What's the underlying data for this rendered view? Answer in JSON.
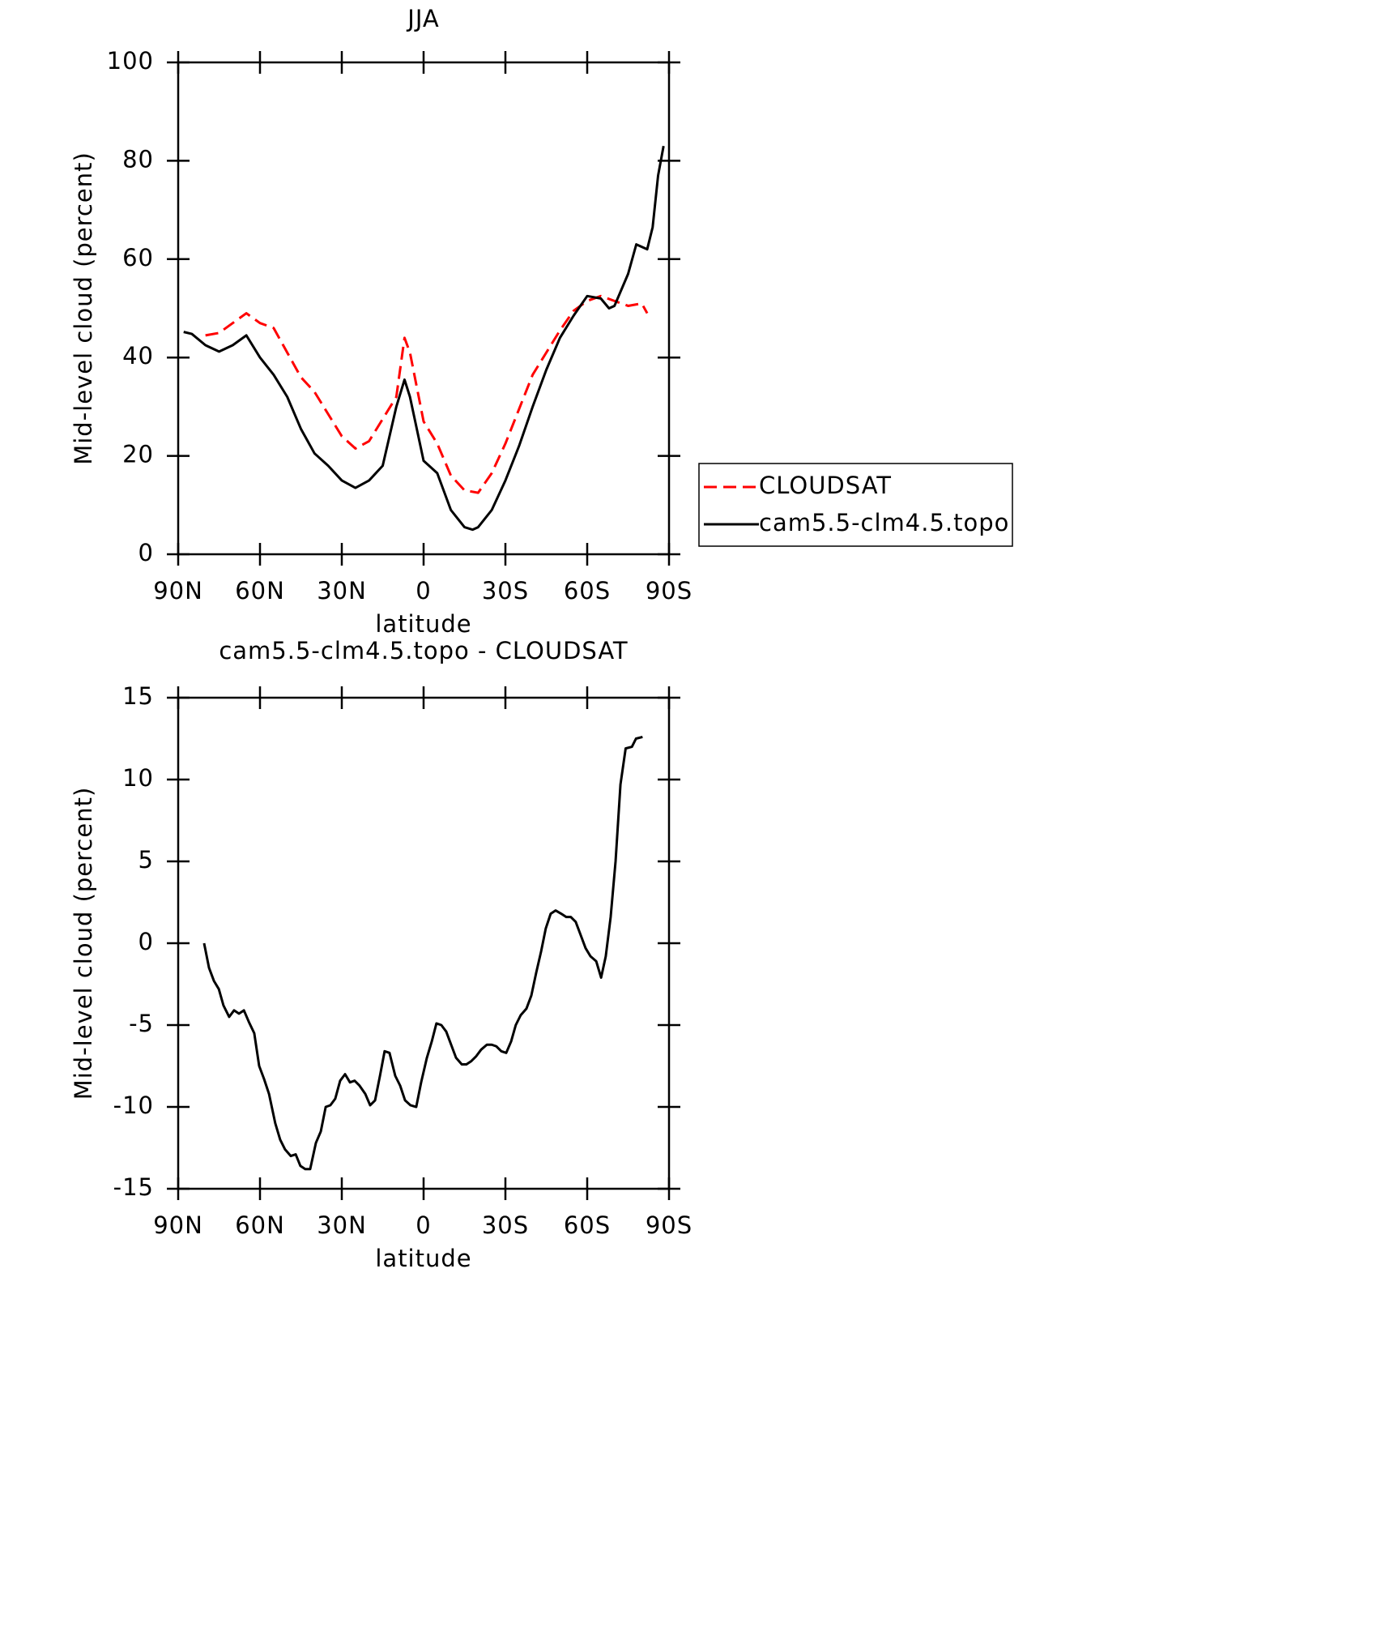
{
  "chart_data": [
    {
      "type": "line",
      "title": "JJA",
      "xlabel": "latitude",
      "ylabel": "Mid-level cloud (percent)",
      "xlim": [
        90,
        -90
      ],
      "xticks": [
        {
          "value": 90,
          "label": "90N"
        },
        {
          "value": 60,
          "label": "60N"
        },
        {
          "value": 30,
          "label": "30N"
        },
        0,
        {
          "value": -30,
          "label": "30S"
        },
        {
          "value": -60,
          "label": "60S"
        },
        {
          "value": -90,
          "label": "90S"
        }
      ],
      "ylim": [
        0,
        100
      ],
      "yticks": [
        0,
        20,
        40,
        60,
        80,
        100
      ],
      "legend": "outside-right",
      "series": [
        {
          "name": "CLOUDSAT",
          "color": "#ff0000",
          "dashed": true,
          "x": [
            80,
            75,
            70,
            65,
            60,
            55,
            50,
            45,
            40,
            35,
            30,
            25,
            20,
            15,
            10,
            7,
            5,
            0,
            -5,
            -10,
            -15,
            -20,
            -25,
            -30,
            -35,
            -40,
            -45,
            -50,
            -55,
            -60,
            -65,
            -70,
            -75,
            -80,
            -82
          ],
          "values": [
            44.5,
            45,
            47,
            49,
            47,
            46,
            41,
            36,
            33,
            28.5,
            24,
            21.5,
            23,
            27.5,
            32,
            44,
            41,
            27,
            22.5,
            16,
            13,
            12.5,
            16.5,
            22.5,
            29.5,
            36.5,
            41,
            45.5,
            49.5,
            51.5,
            52.5,
            51.5,
            50.5,
            51,
            49
          ]
        },
        {
          "name": "cam5.5-clm4.5.topo",
          "color": "#000000",
          "dashed": false,
          "x": [
            88,
            85,
            80,
            75,
            70,
            65,
            60,
            55,
            50,
            45,
            40,
            35,
            30,
            25,
            20,
            15,
            10,
            7,
            5,
            0,
            -5,
            -10,
            -15,
            -18,
            -20,
            -25,
            -30,
            -35,
            -40,
            -45,
            -50,
            -55,
            -60,
            -65,
            -68,
            -70,
            -75,
            -78,
            -80,
            -82,
            -84,
            -86,
            -88
          ],
          "values": [
            45.2,
            44.8,
            42.5,
            41.2,
            42.5,
            44.5,
            40,
            36.5,
            32,
            25.5,
            20.5,
            18,
            15,
            13.5,
            15,
            18,
            30,
            35.5,
            32,
            19,
            16.5,
            9,
            5.5,
            5,
            5.5,
            9,
            15,
            22,
            30,
            37.5,
            44,
            48.5,
            52.5,
            52,
            50,
            50.5,
            57,
            63,
            62.5,
            62,
            66.5,
            77,
            83
          ]
        }
      ]
    },
    {
      "type": "line",
      "title": "cam5.5-clm4.5.topo - CLOUDSAT",
      "xlabel": "latitude",
      "ylabel": "Mid-level cloud (percent)",
      "xlim": [
        90,
        -90
      ],
      "xticks": [
        {
          "value": 90,
          "label": "90N"
        },
        {
          "value": 60,
          "label": "60N"
        },
        {
          "value": 30,
          "label": "30N"
        },
        0,
        {
          "value": -30,
          "label": "30S"
        },
        {
          "value": -60,
          "label": "60S"
        },
        {
          "value": -90,
          "label": "90S"
        }
      ],
      "ylim": [
        -15,
        15
      ],
      "yticks": [
        -15,
        -10,
        -5,
        0,
        5,
        10,
        15
      ],
      "series": [
        {
          "color": "#000000",
          "dashed": false,
          "x": [
            80.5,
            78.7,
            76.9,
            75.1,
            73.4,
            71.3,
            69.5,
            67.7,
            65.9,
            64.1,
            62.1,
            60.3,
            58.5,
            56.7,
            54.4,
            52.6,
            50.8,
            48.7,
            46.9,
            45.2,
            43.4,
            41.6,
            39.5,
            37.7,
            35.9,
            34.2,
            32.4,
            30.6,
            28.8,
            27,
            25.3,
            23.5,
            21.4,
            19.6,
            17.8,
            16,
            14.3,
            12.5,
            10.4,
            8.6,
            6.8,
            4.8,
            2.7,
            0.9,
            -1.2,
            -3,
            -4.7,
            -6.5,
            -8.3,
            -10.1,
            -11.9,
            -14,
            -15.7,
            -17.5,
            -19.3,
            -21.1,
            -23.2,
            -25,
            -26.7,
            -28.5,
            -30.3,
            -32.1,
            -33.8,
            -35.6,
            -37.7,
            -39.5,
            -41.3,
            -43.1,
            -44.8,
            -46.6,
            -48.4,
            -50.5,
            -52.3,
            -54,
            -55.8,
            -57.6,
            -59.4,
            -61.2,
            -63.3,
            -65.1,
            -66.8,
            -68.6,
            -70.4,
            -72.2,
            -74.1,
            -76.4,
            -77.9,
            -80.3
          ],
          "values": [
            0,
            -1.5,
            -2.3,
            -2.8,
            -3.8,
            -4.5,
            -4.1,
            -4.3,
            -4.1,
            -4.8,
            -5.5,
            -7.5,
            -8.3,
            -9.2,
            -11,
            -12,
            -12.6,
            -13,
            -12.9,
            -13.6,
            -13.8,
            -13.8,
            -12.2,
            -11.5,
            -10,
            -9.9,
            -9.5,
            -8.4,
            -8,
            -8.5,
            -8.4,
            -8.7,
            -9.2,
            -9.9,
            -9.6,
            -8.1,
            -6.6,
            -6.7,
            -8.1,
            -8.7,
            -9.6,
            -9.9,
            -10,
            -8.5,
            -7,
            -6,
            -4.9,
            -5,
            -5.4,
            -6.2,
            -7,
            -7.4,
            -7.4,
            -7.2,
            -6.9,
            -6.5,
            -6.2,
            -6.2,
            -6.3,
            -6.6,
            -6.7,
            -6,
            -5,
            -4.4,
            -4,
            -3.2,
            -1.8,
            -0.5,
            0.9,
            1.8,
            2,
            1.8,
            1.6,
            1.6,
            1.3,
            0.5,
            -0.3,
            -0.8,
            -1.1,
            -2.1,
            -0.8,
            1.6,
            5,
            9.7,
            11.9,
            12,
            12.5,
            12.6
          ]
        }
      ]
    }
  ]
}
